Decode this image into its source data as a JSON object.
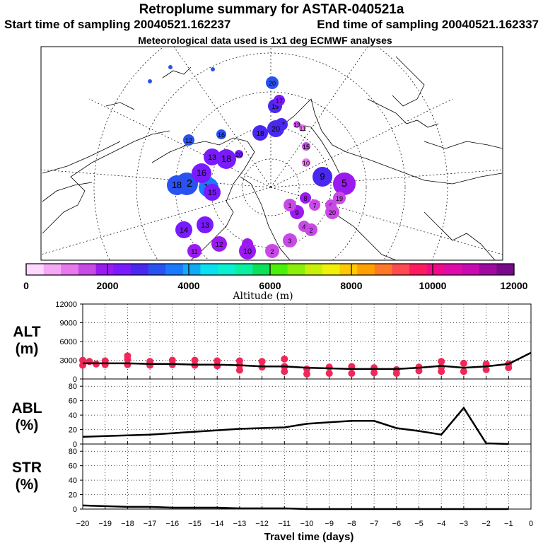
{
  "header": {
    "title": "Retroplume summary for ASTAR-040521a",
    "start_label": "Start time of sampling 20040521.162237",
    "end_label": "End time of sampling 20040521.162337",
    "met_label": "Meteorological data used is 1x1 deg ECMWF analyses"
  },
  "colorbar": {
    "colors": [
      "#ffd8ff",
      "#f5a8f5",
      "#e878ee",
      "#c84ae6",
      "#9a1af0",
      "#7a1aff",
      "#4a28f0",
      "#2a52f0",
      "#1a7aff",
      "#12aaf5",
      "#0ae0f0",
      "#0af0d0",
      "#0af0a0",
      "#0ae05a",
      "#4af00a",
      "#8af00a",
      "#c8f00a",
      "#f0f00a",
      "#ffc800",
      "#ffa000",
      "#ff7828",
      "#ff4a50",
      "#ff1a60",
      "#f00a8a",
      "#e00aaa",
      "#c80ab0",
      "#a00aa0",
      "#780a8a"
    ],
    "tick_labels": [
      "0",
      "2000",
      "4000",
      "6000",
      "8000",
      "10000",
      "12000"
    ],
    "label": "Altitude (m)"
  },
  "map": {
    "points": [
      {
        "day": "20",
        "color": "#2a52f0"
      },
      {
        "day": "19",
        "color": "#4a28f0"
      },
      {
        "day": "18",
        "color": "#4a28f0"
      },
      {
        "day": "17",
        "color": "#4a28f0"
      },
      {
        "day": "16",
        "color": "#2a52f0"
      },
      {
        "day": "13",
        "color": "#7a1aff"
      },
      {
        "day": "12",
        "color": "#2a52f0"
      },
      {
        "day": "14",
        "color": "#1a7aff"
      },
      {
        "day": "15",
        "color": "#c84ae6"
      },
      {
        "day": "13",
        "color": "#c84ae6"
      },
      {
        "day": "11",
        "color": "#e878ee"
      },
      {
        "day": "10",
        "color": "#e878ee"
      },
      {
        "day": "9",
        "color": "#4a28f0"
      },
      {
        "day": "8",
        "color": "#9a1af0"
      },
      {
        "day": "7",
        "color": "#c84ae6"
      },
      {
        "day": "6",
        "color": "#c84ae6"
      },
      {
        "day": "5",
        "color": "#9a1af0"
      },
      {
        "day": "4",
        "color": "#c84ae6"
      },
      {
        "day": "3",
        "color": "#c84ae6"
      },
      {
        "day": "2",
        "color": "#c84ae6"
      },
      {
        "day": "1",
        "color": "#9a1af0"
      },
      {
        "day": "20",
        "color": "#7a1aff"
      },
      {
        "day": "18",
        "color": "#7a1aff"
      },
      {
        "day": "16",
        "color": "#7a1aff"
      },
      {
        "day": "15",
        "color": "#7a1aff"
      },
      {
        "day": "14",
        "color": "#7a1aff"
      },
      {
        "day": "13",
        "color": "#7a1aff"
      },
      {
        "day": "12",
        "color": "#9a1af0"
      },
      {
        "day": "11",
        "color": "#9a1af0"
      },
      {
        "day": "10",
        "color": "#9a1af0"
      },
      {
        "day": "9",
        "color": "#9a1af0"
      },
      {
        "day": "1",
        "color": "#c84ae6"
      },
      {
        "day": "2",
        "color": "#c84ae6"
      },
      {
        "day": "20",
        "color": "#c84ae6"
      },
      {
        "day": "19",
        "color": "#c84ae6"
      },
      {
        "day": "17",
        "color": "#7a1aff"
      },
      {
        "day": "18",
        "color": "#2a52f0"
      },
      {
        "day": "12",
        "color": "#2a52f0"
      },
      {
        "day": "20",
        "color": "#4a28f0"
      }
    ]
  },
  "chart_data": [
    {
      "type": "line",
      "panel": "ALT",
      "ylabel": "ALT",
      "yunit": "(m)",
      "xlabel": "Travel time (days)",
      "ylim": [
        0,
        12000
      ],
      "yticks": [
        "12000",
        "9000",
        "6000",
        "3000",
        "0"
      ],
      "x": [
        -20,
        -19,
        -18,
        -17,
        -16,
        -15,
        -14,
        -13,
        -12,
        -11,
        -10,
        -9,
        -8,
        -7,
        -6,
        -5,
        -4,
        -3,
        -2,
        -1,
        0
      ],
      "values": [
        2500,
        2500,
        2500,
        2400,
        2400,
        2300,
        2300,
        2200,
        2000,
        2000,
        1800,
        1700,
        1600,
        1600,
        1600,
        1800,
        2100,
        1800,
        2000,
        2400,
        4200
      ],
      "scatter_color": "#f0285a",
      "scatter": [
        [
          -20,
          3000
        ],
        [
          -20,
          2200
        ],
        [
          -19.7,
          2800
        ],
        [
          -19.4,
          2400
        ],
        [
          -19,
          2900
        ],
        [
          -19,
          2300
        ],
        [
          -18,
          3100
        ],
        [
          -18,
          2300
        ],
        [
          -18,
          3700
        ],
        [
          -17,
          2800
        ],
        [
          -17,
          2200
        ],
        [
          -16,
          3000
        ],
        [
          -16,
          2300
        ],
        [
          -15,
          3000
        ],
        [
          -15,
          2200
        ],
        [
          -14,
          2900
        ],
        [
          -14,
          2100
        ],
        [
          -13,
          2900
        ],
        [
          -13,
          2200
        ],
        [
          -13,
          1400
        ],
        [
          -12,
          2800
        ],
        [
          -12,
          1900
        ],
        [
          -11,
          3200
        ],
        [
          -11,
          2000
        ],
        [
          -11,
          1200
        ],
        [
          -10,
          1600
        ],
        [
          -10,
          800
        ],
        [
          -9,
          1900
        ],
        [
          -9,
          900
        ],
        [
          -8,
          2000
        ],
        [
          -8,
          900
        ],
        [
          -7,
          1800
        ],
        [
          -7,
          1000
        ],
        [
          -6,
          1500
        ],
        [
          -6,
          900
        ],
        [
          -5,
          1900
        ],
        [
          -5,
          1300
        ],
        [
          -4,
          2800
        ],
        [
          -4,
          1900
        ],
        [
          -4,
          1200
        ],
        [
          -3,
          2500
        ],
        [
          -3,
          1200
        ],
        [
          -2,
          2400
        ],
        [
          -2,
          1500
        ],
        [
          -1,
          2400
        ],
        [
          -1,
          1800
        ]
      ]
    },
    {
      "type": "line",
      "panel": "ABL",
      "ylabel": "ABL",
      "yunit": "(%)",
      "ylim": [
        0,
        90
      ],
      "yticks": [
        "80",
        "60",
        "40",
        "20",
        "0"
      ],
      "x": [
        -20,
        -19,
        -18,
        -17,
        -16,
        -15,
        -14,
        -13,
        -12,
        -11,
        -10,
        -9,
        -8,
        -7,
        -6,
        -5,
        -4,
        -3,
        -2,
        -1
      ],
      "values": [
        10,
        11,
        12,
        13,
        15,
        17,
        19,
        21,
        22,
        23,
        28,
        30,
        32,
        32,
        22,
        18,
        13,
        50,
        1,
        0
      ]
    },
    {
      "type": "line",
      "panel": "STR",
      "ylabel": "STR",
      "yunit": "(%)",
      "ylim": [
        0,
        90
      ],
      "yticks": [
        "80",
        "60",
        "40",
        "20",
        "0"
      ],
      "x": [
        -20,
        -19,
        -18,
        -17,
        -16,
        -15,
        -14,
        -13,
        -12,
        -11,
        -10,
        -9,
        -8,
        -7,
        -6,
        -5,
        -4,
        -3,
        -2,
        -1
      ],
      "values": [
        5,
        4,
        3,
        3,
        2,
        2,
        2,
        1,
        1,
        1,
        0,
        0,
        0,
        0,
        0,
        0,
        0,
        0,
        0,
        0
      ]
    }
  ],
  "x_tick_labels": [
    "−20",
    "−19",
    "−18",
    "−17",
    "−16",
    "−15",
    "−14",
    "−13",
    "−12",
    "−11",
    "−10",
    "−9",
    "−8",
    "−7",
    "−6",
    "−5",
    "−4",
    "−3",
    "−2",
    "−1",
    "0"
  ]
}
